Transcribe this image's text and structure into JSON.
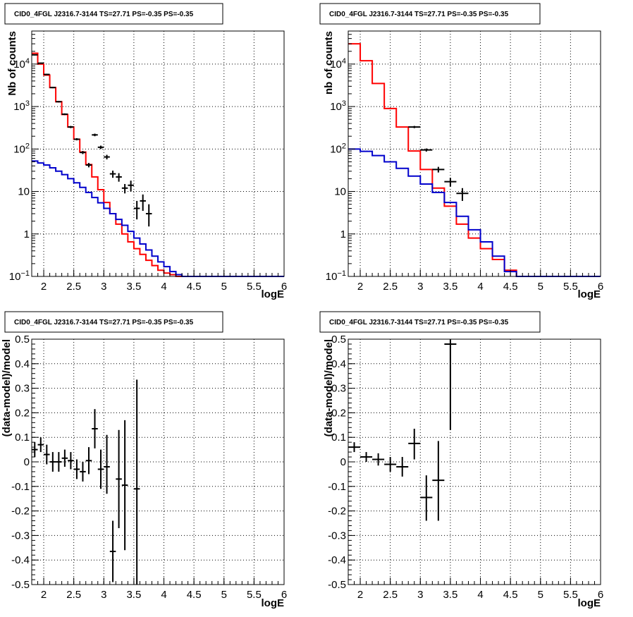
{
  "chart_data": [
    {
      "type": "line",
      "title": "CID0_4FGL J2316.7-3144 TS=27.71 PS=-0.35 PS=-0.35",
      "xlabel": "logE",
      "ylabel": "Nb of counts",
      "xlim": [
        1.8,
        6.0
      ],
      "ylim": [
        0.1,
        60000
      ],
      "yscale": "log",
      "grid": true,
      "xticks": [
        "2",
        "2.5",
        "3",
        "3.5",
        "4",
        "4.5",
        "5",
        "5.5",
        "6"
      ],
      "yticks": [
        "10^-1",
        "1",
        "10",
        "10^2",
        "10^3",
        "10^4"
      ],
      "series": [
        {
          "color": "#ff0000",
          "kind": "step",
          "bin_edges": [
            1.8,
            1.9,
            2.0,
            2.1,
            2.2,
            2.3,
            2.4,
            2.5,
            2.6,
            2.7,
            2.8,
            2.9,
            3.0,
            3.1,
            3.2,
            3.3,
            3.4,
            3.5,
            3.6,
            3.7,
            3.8,
            3.9,
            4.0,
            4.1,
            4.2,
            4.3,
            4.4,
            4.5,
            4.6,
            6.0
          ],
          "values": [
            18000,
            10000,
            5500,
            2800,
            1300,
            650,
            330,
            170,
            85,
            43,
            22,
            11,
            5.5,
            3.0,
            1.7,
            1.0,
            0.65,
            0.45,
            0.33,
            0.24,
            0.18,
            0.14,
            0.12,
            0.11,
            0.1,
            0.1,
            0.1,
            0.1,
            0.1
          ]
        },
        {
          "color": "#0000cc",
          "kind": "step",
          "bin_edges": [
            1.8,
            1.9,
            2.0,
            2.1,
            2.2,
            2.3,
            2.4,
            2.5,
            2.6,
            2.7,
            2.8,
            2.9,
            3.0,
            3.1,
            3.2,
            3.3,
            3.4,
            3.5,
            3.6,
            3.7,
            3.8,
            3.9,
            4.0,
            4.1,
            4.2,
            4.3,
            4.4,
            4.5,
            4.6,
            6.0
          ],
          "values": [
            52,
            47,
            42,
            36,
            30,
            25,
            20,
            16,
            12.5,
            9.5,
            7.2,
            5.4,
            4.0,
            3.0,
            2.2,
            1.6,
            1.15,
            0.8,
            0.58,
            0.42,
            0.3,
            0.22,
            0.17,
            0.13,
            0.11,
            0.1,
            0.1,
            0.1,
            0.1
          ]
        }
      ],
      "points": [
        {
          "x": 1.85,
          "y": 16500,
          "xerr": 0.05,
          "ylo": 16000,
          "yhi": 17000
        },
        {
          "x": 1.95,
          "y": 10500,
          "xerr": 0.05,
          "ylo": 10200,
          "yhi": 10800
        },
        {
          "x": 2.05,
          "y": 5700,
          "xerr": 0.05,
          "ylo": 5500,
          "yhi": 5900
        },
        {
          "x": 2.15,
          "y": 2800,
          "xerr": 0.05,
          "ylo": 2700,
          "yhi": 2900
        },
        {
          "x": 2.25,
          "y": 1300,
          "xerr": 0.05,
          "ylo": 1250,
          "yhi": 1350
        },
        {
          "x": 2.35,
          "y": 660,
          "xerr": 0.05,
          "ylo": 630,
          "yhi": 690
        },
        {
          "x": 2.45,
          "y": 330,
          "xerr": 0.05,
          "ylo": 310,
          "yhi": 350
        },
        {
          "x": 2.55,
          "y": 170,
          "xerr": 0.05,
          "ylo": 160,
          "yhi": 180
        },
        {
          "x": 2.65,
          "y": 83,
          "xerr": 0.05,
          "ylo": 76,
          "yhi": 90
        },
        {
          "x": 2.75,
          "y": 42,
          "xerr": 0.05,
          "ylo": 37,
          "yhi": 47
        },
        {
          "x": 2.85,
          "y": 215,
          "xerr": 0.05,
          "ylo": 200,
          "yhi": 230
        },
        {
          "x": 2.95,
          "y": 110,
          "xerr": 0.05,
          "ylo": 100,
          "yhi": 120
        },
        {
          "x": 3.05,
          "y": 65,
          "xerr": 0.05,
          "ylo": 57,
          "yhi": 73
        },
        {
          "x": 3.15,
          "y": 26,
          "xerr": 0.05,
          "ylo": 21,
          "yhi": 31
        },
        {
          "x": 3.25,
          "y": 22,
          "xerr": 0.05,
          "ylo": 17,
          "yhi": 27
        },
        {
          "x": 3.35,
          "y": 12,
          "xerr": 0.05,
          "ylo": 9,
          "yhi": 15
        },
        {
          "x": 3.45,
          "y": 14,
          "xerr": 0.05,
          "ylo": 10,
          "yhi": 18
        },
        {
          "x": 3.55,
          "y": 4,
          "xerr": 0.05,
          "ylo": 2.2,
          "yhi": 6
        },
        {
          "x": 3.65,
          "y": 6,
          "xerr": 0.05,
          "ylo": 3.5,
          "yhi": 8.5
        },
        {
          "x": 3.75,
          "y": 3,
          "xerr": 0.05,
          "ylo": 1.5,
          "yhi": 5
        }
      ]
    },
    {
      "type": "line",
      "title": "CID0_4FGL J2316.7-3144 TS=27.71 PS=-0.35 PS=-0.35",
      "xlabel": "logE",
      "ylabel": "nb of counts",
      "xlim": [
        1.8,
        6.0
      ],
      "ylim": [
        0.1,
        60000
      ],
      "yscale": "log",
      "grid": true,
      "xticks": [
        "2",
        "2.5",
        "3",
        "3.5",
        "4",
        "4.5",
        "5",
        "5.5",
        "6"
      ],
      "yticks": [
        "10^-1",
        "1",
        "10",
        "10^2",
        "10^3",
        "10^4"
      ],
      "series": [
        {
          "color": "#ff0000",
          "kind": "step",
          "bin_edges": [
            1.8,
            2.0,
            2.2,
            2.4,
            2.6,
            2.8,
            3.0,
            3.2,
            3.4,
            3.6,
            3.8,
            4.0,
            4.2,
            4.4,
            4.6,
            4.8,
            6.0
          ],
          "values": [
            30000,
            12000,
            3500,
            900,
            330,
            90,
            33,
            12,
            4.5,
            1.7,
            0.8,
            0.45,
            0.25,
            0.14,
            0.1,
            0.1
          ]
        },
        {
          "color": "#0000cc",
          "kind": "step",
          "bin_edges": [
            1.8,
            2.0,
            2.2,
            2.4,
            2.6,
            2.8,
            3.0,
            3.2,
            3.4,
            3.6,
            3.8,
            4.0,
            4.2,
            4.4,
            4.6,
            4.8,
            6.0
          ],
          "values": [
            100,
            88,
            70,
            50,
            35,
            23,
            15,
            9.5,
            5.5,
            2.6,
            1.25,
            0.65,
            0.3,
            0.13,
            0.1,
            0.1
          ]
        }
      ],
      "points": [
        {
          "x": 2.9,
          "y": 330,
          "xerr": 0.1,
          "ylo": 310,
          "yhi": 350
        },
        {
          "x": 3.1,
          "y": 95,
          "xerr": 0.1,
          "ylo": 87,
          "yhi": 103
        },
        {
          "x": 3.3,
          "y": 33,
          "xerr": 0.1,
          "ylo": 28,
          "yhi": 38
        },
        {
          "x": 3.5,
          "y": 17,
          "xerr": 0.1,
          "ylo": 13,
          "yhi": 21
        },
        {
          "x": 3.7,
          "y": 9,
          "xerr": 0.1,
          "ylo": 6,
          "yhi": 12
        }
      ]
    },
    {
      "type": "scatter",
      "title": "CID0_4FGL J2316.7-3144 TS=27.71 PS=-0.35 PS=-0.35",
      "xlabel": "logE",
      "ylabel": "(data-model)/model",
      "xlim": [
        1.8,
        6.0
      ],
      "ylim": [
        -0.5,
        0.5
      ],
      "grid": true,
      "xticks": [
        "2",
        "2.5",
        "3",
        "3.5",
        "4",
        "4.5",
        "5",
        "5.5",
        "6"
      ],
      "yticks": [
        "-0.5",
        "-0.4",
        "-0.3",
        "-0.2",
        "-0.1",
        "0",
        "0.1",
        "0.2",
        "0.3",
        "0.4",
        "0.5"
      ],
      "points": [
        {
          "x": 1.85,
          "y": 0.05,
          "xerr": 0.05,
          "ylo": 0.02,
          "yhi": 0.08
        },
        {
          "x": 1.95,
          "y": 0.07,
          "xerr": 0.05,
          "ylo": 0.04,
          "yhi": 0.1
        },
        {
          "x": 2.05,
          "y": 0.03,
          "xerr": 0.05,
          "ylo": -0.01,
          "yhi": 0.07
        },
        {
          "x": 2.15,
          "y": 0.0,
          "xerr": 0.05,
          "ylo": -0.04,
          "yhi": 0.04
        },
        {
          "x": 2.25,
          "y": 0.0,
          "xerr": 0.05,
          "ylo": -0.04,
          "yhi": 0.04
        },
        {
          "x": 2.35,
          "y": 0.015,
          "xerr": 0.05,
          "ylo": -0.02,
          "yhi": 0.05
        },
        {
          "x": 2.45,
          "y": 0.005,
          "xerr": 0.05,
          "ylo": -0.03,
          "yhi": 0.04
        },
        {
          "x": 2.55,
          "y": -0.03,
          "xerr": 0.05,
          "ylo": -0.07,
          "yhi": 0.01
        },
        {
          "x": 2.65,
          "y": -0.04,
          "xerr": 0.05,
          "ylo": -0.08,
          "yhi": 0.0
        },
        {
          "x": 2.75,
          "y": 0.005,
          "xerr": 0.05,
          "ylo": -0.05,
          "yhi": 0.06
        },
        {
          "x": 2.85,
          "y": 0.135,
          "xerr": 0.05,
          "ylo": 0.055,
          "yhi": 0.215
        },
        {
          "x": 2.95,
          "y": -0.03,
          "xerr": 0.05,
          "ylo": -0.11,
          "yhi": 0.05
        },
        {
          "x": 3.05,
          "y": -0.02,
          "xerr": 0.05,
          "ylo": -0.13,
          "yhi": 0.11
        },
        {
          "x": 3.15,
          "y": -0.365,
          "xerr": 0.05,
          "ylo": -0.49,
          "yhi": -0.24
        },
        {
          "x": 3.25,
          "y": -0.07,
          "xerr": 0.05,
          "ylo": -0.27,
          "yhi": 0.13
        },
        {
          "x": 3.35,
          "y": -0.095,
          "xerr": 0.05,
          "ylo": -0.36,
          "yhi": 0.17
        },
        {
          "x": 3.55,
          "y": -0.11,
          "xerr": 0.05,
          "ylo": -0.5,
          "yhi": 0.335
        }
      ]
    },
    {
      "type": "scatter",
      "title": "CID0_4FGL J2316.7-3144 TS=27.71 PS=-0.35 PS=-0.35",
      "xlabel": "logE",
      "ylabel": "(data-model)/model",
      "xlim": [
        1.8,
        6.0
      ],
      "ylim": [
        -0.5,
        0.5
      ],
      "grid": true,
      "xticks": [
        "2",
        "2.5",
        "3",
        "3.5",
        "4",
        "4.5",
        "5",
        "5.5",
        "6"
      ],
      "yticks": [
        "-0.5",
        "-0.4",
        "-0.3",
        "-0.2",
        "-0.1",
        "0",
        "0.1",
        "0.2",
        "0.3",
        "0.4",
        "0.5"
      ],
      "points": [
        {
          "x": 1.9,
          "y": 0.06,
          "xerr": 0.1,
          "ylo": 0.04,
          "yhi": 0.08
        },
        {
          "x": 2.1,
          "y": 0.02,
          "xerr": 0.1,
          "ylo": 0.0,
          "yhi": 0.04
        },
        {
          "x": 2.3,
          "y": 0.01,
          "xerr": 0.1,
          "ylo": -0.015,
          "yhi": 0.035
        },
        {
          "x": 2.5,
          "y": -0.01,
          "xerr": 0.1,
          "ylo": -0.04,
          "yhi": 0.02
        },
        {
          "x": 2.7,
          "y": -0.02,
          "xerr": 0.1,
          "ylo": -0.06,
          "yhi": 0.02
        },
        {
          "x": 2.9,
          "y": 0.075,
          "xerr": 0.1,
          "ylo": 0.01,
          "yhi": 0.135
        },
        {
          "x": 3.1,
          "y": -0.145,
          "xerr": 0.1,
          "ylo": -0.24,
          "yhi": -0.055
        },
        {
          "x": 3.3,
          "y": -0.075,
          "xerr": 0.1,
          "ylo": -0.24,
          "yhi": 0.085
        },
        {
          "x": 3.5,
          "y": 0.48,
          "xerr": 0.1,
          "ylo": 0.13,
          "yhi": 0.5
        }
      ]
    }
  ]
}
